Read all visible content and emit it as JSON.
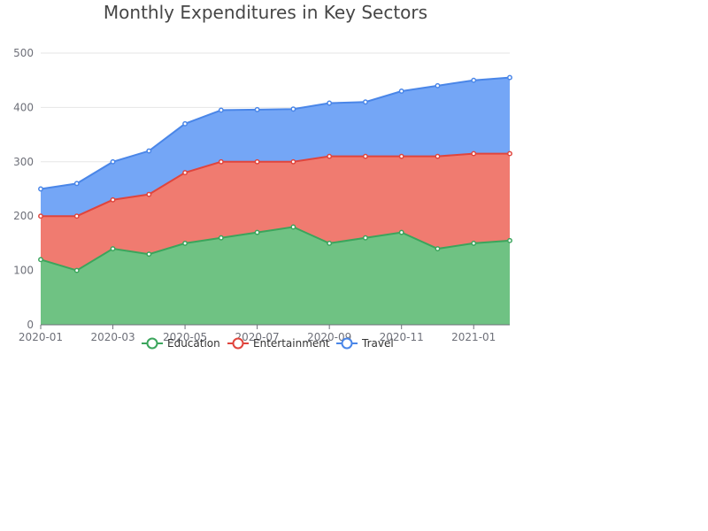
{
  "chart_data": {
    "type": "area",
    "stacked": true,
    "title": "Monthly Expenditures in Key Sectors",
    "xlabel": "",
    "ylabel": "",
    "ylim": [
      0,
      500
    ],
    "yticks": [
      "0",
      "100",
      "200",
      "300",
      "400",
      "500"
    ],
    "xticks": [
      "2020-01",
      "2020-03",
      "2020-05",
      "2020-07",
      "2020-09",
      "2020-11",
      "2021-01"
    ],
    "x": [
      "2020-01",
      "2020-02",
      "2020-03",
      "2020-04",
      "2020-05",
      "2020-06",
      "2020-07",
      "2020-08",
      "2020-09",
      "2020-10",
      "2020-11",
      "2020-12",
      "2021-01",
      "2021-02"
    ],
    "grid": true,
    "legend_position": "bottom",
    "series": [
      {
        "name": "Education",
        "color": "#3ba55c",
        "fill": "#6fc283",
        "values": [
          120,
          100,
          140,
          130,
          150,
          160,
          170,
          180,
          150,
          160,
          170,
          140,
          150,
          155
        ]
      },
      {
        "name": "Entertainment",
        "color": "#e0453d",
        "fill": "#f07b70",
        "values": [
          80,
          100,
          90,
          110,
          130,
          140,
          130,
          120,
          160,
          150,
          140,
          170,
          165,
          160
        ]
      },
      {
        "name": "Travel",
        "color": "#4a86e8",
        "fill": "#74a6f6",
        "values": [
          50,
          60,
          70,
          80,
          90,
          95,
          96,
          97,
          98,
          100,
          120,
          130,
          135,
          140
        ]
      }
    ]
  }
}
